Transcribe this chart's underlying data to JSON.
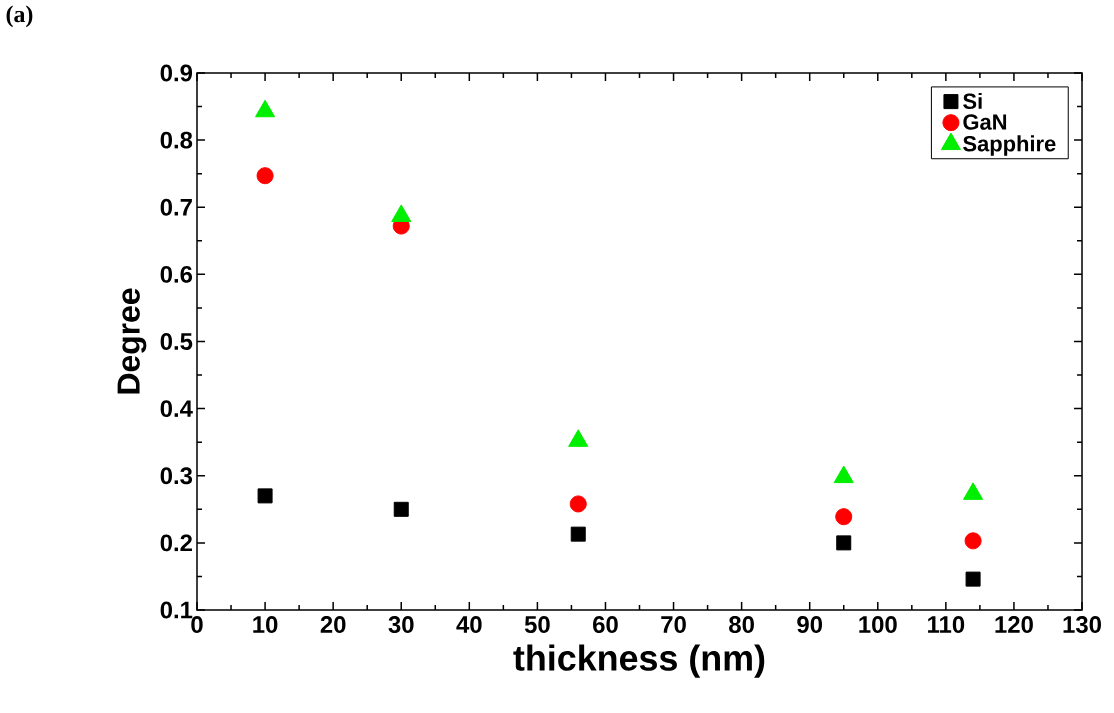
{
  "chart_data": {
    "type": "scatter",
    "xlabel": "thickness (nm)",
    "ylabel": "Degree",
    "annotations": [
      "(a)"
    ],
    "xlim": [
      0,
      130
    ],
    "xticks": [
      0,
      10,
      20,
      30,
      40,
      50,
      60,
      70,
      80,
      90,
      100,
      110,
      120,
      130
    ],
    "ylim": [
      0.1,
      0.9
    ],
    "yticks": [
      0.1,
      0.2,
      0.3,
      0.4,
      0.5,
      0.6,
      0.7,
      0.8,
      0.9
    ],
    "x": [
      10,
      30,
      56,
      95,
      114
    ],
    "series": [
      {
        "name": "Si",
        "color": "#000000",
        "marker": "square",
        "values": [
          0.27,
          0.25,
          0.213,
          0.2,
          0.146
        ]
      },
      {
        "name": "GaN",
        "color": "#ff0000",
        "marker": "circle",
        "values": [
          0.747,
          0.672,
          0.258,
          0.239,
          0.203
        ]
      },
      {
        "name": "Sapphire",
        "color": "#00ee00",
        "marker": "triangle",
        "values": [
          0.843,
          0.687,
          0.352,
          0.298,
          0.273
        ]
      }
    ],
    "legend": "top right",
    "grid": false
  }
}
